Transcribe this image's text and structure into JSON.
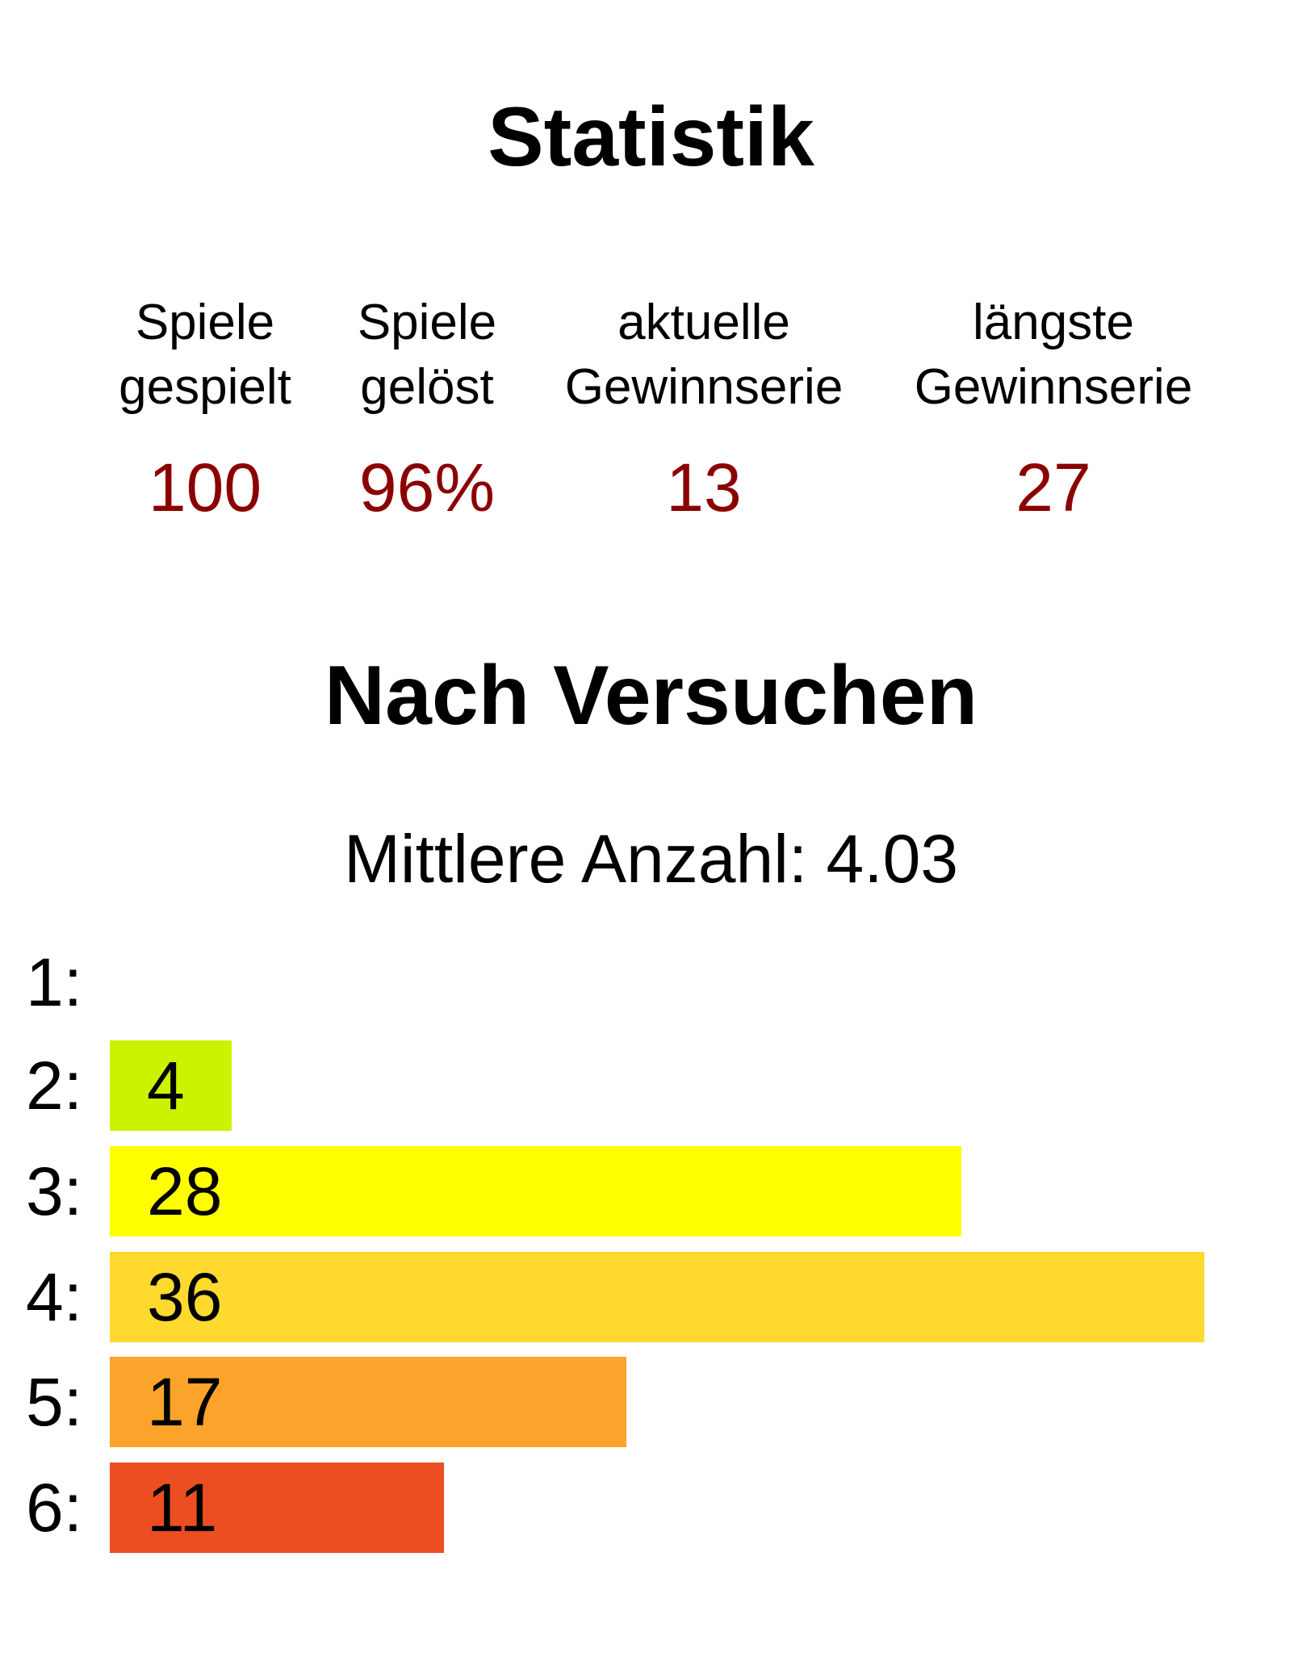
{
  "stats": {
    "title": "Statistik",
    "items": [
      {
        "label_line1": "Spiele",
        "label_line2": "gespielt",
        "value": "100"
      },
      {
        "label_line1": "Spiele",
        "label_line2": "gelöst",
        "value": "96%"
      },
      {
        "label_line1": "aktuelle",
        "label_line2": "Gewinnserie",
        "value": "13"
      },
      {
        "label_line1": "längste",
        "label_line2": "Gewinnserie",
        "value": "27"
      }
    ],
    "value_color": "#8b0000"
  },
  "distribution": {
    "title": "Nach Versuchen",
    "average_label": "Mittlere Anzahl:",
    "average_value": "4.03",
    "rows": [
      {
        "label": "1:",
        "count": "",
        "value": 0,
        "color": "#ffffff"
      },
      {
        "label": "2:",
        "count": "4",
        "value": 4,
        "color": "#ccf200"
      },
      {
        "label": "3:",
        "count": "28",
        "value": 28,
        "color": "#ffff00"
      },
      {
        "label": "4:",
        "count": "36",
        "value": 36,
        "color": "#ffd92e"
      },
      {
        "label": "5:",
        "count": "17",
        "value": 17,
        "color": "#fba32a"
      },
      {
        "label": "6:",
        "count": "11",
        "value": 11,
        "color": "#ec4e22"
      }
    ],
    "max_value": 36
  }
}
